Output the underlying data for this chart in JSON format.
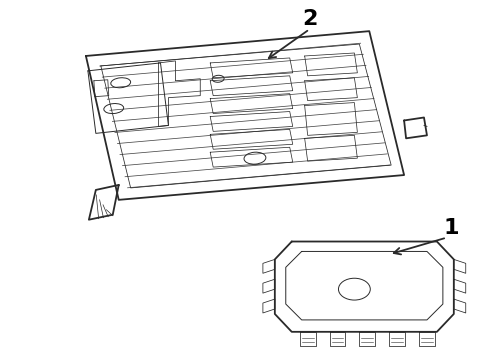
{
  "background_color": "#ffffff",
  "line_color": "#2a2a2a",
  "label_color": "#000000",
  "fig_width": 4.9,
  "fig_height": 3.6,
  "dpi": 100,
  "label1": "1",
  "label2": "2"
}
